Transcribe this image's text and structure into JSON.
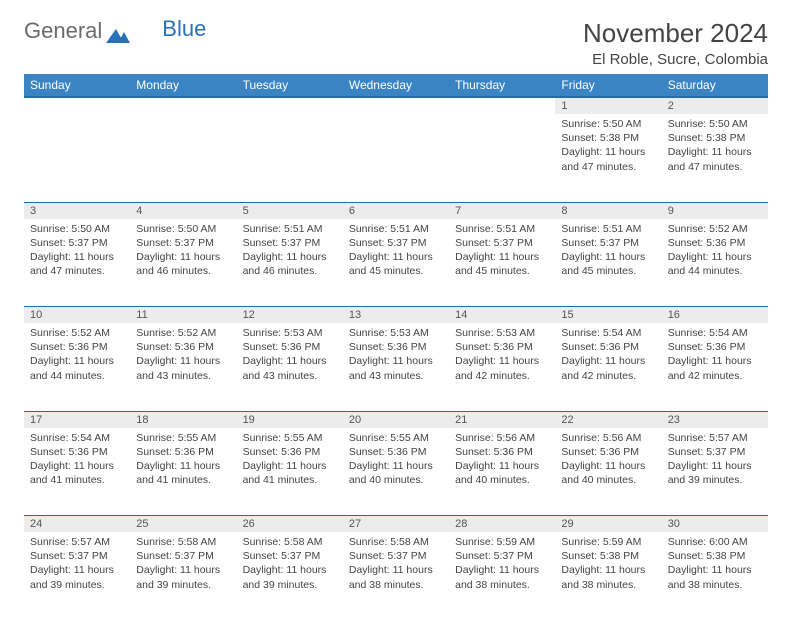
{
  "brand": {
    "part1": "General",
    "part2": "Blue"
  },
  "title": "November 2024",
  "location": "El Roble, Sucre, Colombia",
  "header_bg": "#3b84c4",
  "header_border": "#2a6aa3",
  "daynum_bg": "#ececec",
  "text_color": "#444444",
  "day_names": [
    "Sunday",
    "Monday",
    "Tuesday",
    "Wednesday",
    "Thursday",
    "Friday",
    "Saturday"
  ],
  "weeks": [
    {
      "nums": [
        "",
        "",
        "",
        "",
        "",
        "1",
        "2"
      ],
      "cells": [
        null,
        null,
        null,
        null,
        null,
        {
          "sunrise": "5:50 AM",
          "sunset": "5:38 PM",
          "daylight": "11 hours and 47 minutes."
        },
        {
          "sunrise": "5:50 AM",
          "sunset": "5:38 PM",
          "daylight": "11 hours and 47 minutes."
        }
      ]
    },
    {
      "nums": [
        "3",
        "4",
        "5",
        "6",
        "7",
        "8",
        "9"
      ],
      "cells": [
        {
          "sunrise": "5:50 AM",
          "sunset": "5:37 PM",
          "daylight": "11 hours and 47 minutes."
        },
        {
          "sunrise": "5:50 AM",
          "sunset": "5:37 PM",
          "daylight": "11 hours and 46 minutes."
        },
        {
          "sunrise": "5:51 AM",
          "sunset": "5:37 PM",
          "daylight": "11 hours and 46 minutes."
        },
        {
          "sunrise": "5:51 AM",
          "sunset": "5:37 PM",
          "daylight": "11 hours and 45 minutes."
        },
        {
          "sunrise": "5:51 AM",
          "sunset": "5:37 PM",
          "daylight": "11 hours and 45 minutes."
        },
        {
          "sunrise": "5:51 AM",
          "sunset": "5:37 PM",
          "daylight": "11 hours and 45 minutes."
        },
        {
          "sunrise": "5:52 AM",
          "sunset": "5:36 PM",
          "daylight": "11 hours and 44 minutes."
        }
      ]
    },
    {
      "nums": [
        "10",
        "11",
        "12",
        "13",
        "14",
        "15",
        "16"
      ],
      "cells": [
        {
          "sunrise": "5:52 AM",
          "sunset": "5:36 PM",
          "daylight": "11 hours and 44 minutes."
        },
        {
          "sunrise": "5:52 AM",
          "sunset": "5:36 PM",
          "daylight": "11 hours and 43 minutes."
        },
        {
          "sunrise": "5:53 AM",
          "sunset": "5:36 PM",
          "daylight": "11 hours and 43 minutes."
        },
        {
          "sunrise": "5:53 AM",
          "sunset": "5:36 PM",
          "daylight": "11 hours and 43 minutes."
        },
        {
          "sunrise": "5:53 AM",
          "sunset": "5:36 PM",
          "daylight": "11 hours and 42 minutes."
        },
        {
          "sunrise": "5:54 AM",
          "sunset": "5:36 PM",
          "daylight": "11 hours and 42 minutes."
        },
        {
          "sunrise": "5:54 AM",
          "sunset": "5:36 PM",
          "daylight": "11 hours and 42 minutes."
        }
      ]
    },
    {
      "nums": [
        "17",
        "18",
        "19",
        "20",
        "21",
        "22",
        "23"
      ],
      "cells": [
        {
          "sunrise": "5:54 AM",
          "sunset": "5:36 PM",
          "daylight": "11 hours and 41 minutes."
        },
        {
          "sunrise": "5:55 AM",
          "sunset": "5:36 PM",
          "daylight": "11 hours and 41 minutes."
        },
        {
          "sunrise": "5:55 AM",
          "sunset": "5:36 PM",
          "daylight": "11 hours and 41 minutes."
        },
        {
          "sunrise": "5:55 AM",
          "sunset": "5:36 PM",
          "daylight": "11 hours and 40 minutes."
        },
        {
          "sunrise": "5:56 AM",
          "sunset": "5:36 PM",
          "daylight": "11 hours and 40 minutes."
        },
        {
          "sunrise": "5:56 AM",
          "sunset": "5:36 PM",
          "daylight": "11 hours and 40 minutes."
        },
        {
          "sunrise": "5:57 AM",
          "sunset": "5:37 PM",
          "daylight": "11 hours and 39 minutes."
        }
      ]
    },
    {
      "nums": [
        "24",
        "25",
        "26",
        "27",
        "28",
        "29",
        "30"
      ],
      "cells": [
        {
          "sunrise": "5:57 AM",
          "sunset": "5:37 PM",
          "daylight": "11 hours and 39 minutes."
        },
        {
          "sunrise": "5:58 AM",
          "sunset": "5:37 PM",
          "daylight": "11 hours and 39 minutes."
        },
        {
          "sunrise": "5:58 AM",
          "sunset": "5:37 PM",
          "daylight": "11 hours and 39 minutes."
        },
        {
          "sunrise": "5:58 AM",
          "sunset": "5:37 PM",
          "daylight": "11 hours and 38 minutes."
        },
        {
          "sunrise": "5:59 AM",
          "sunset": "5:37 PM",
          "daylight": "11 hours and 38 minutes."
        },
        {
          "sunrise": "5:59 AM",
          "sunset": "5:38 PM",
          "daylight": "11 hours and 38 minutes."
        },
        {
          "sunrise": "6:00 AM",
          "sunset": "5:38 PM",
          "daylight": "11 hours and 38 minutes."
        }
      ]
    }
  ],
  "labels": {
    "sunrise": "Sunrise:",
    "sunset": "Sunset:",
    "daylight": "Daylight:"
  }
}
